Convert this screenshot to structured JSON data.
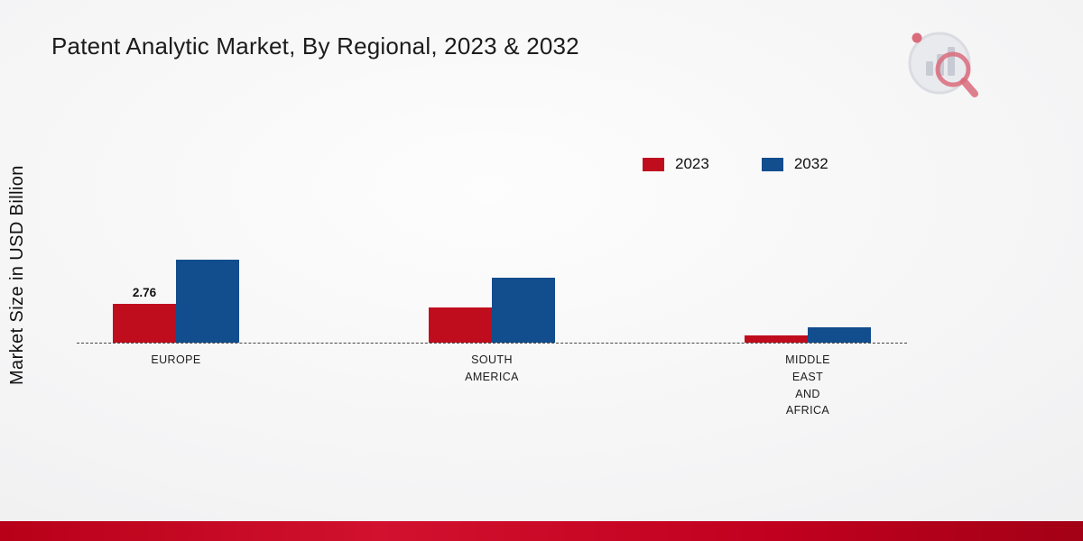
{
  "page": {
    "title": "Patent Analytic Market, By Regional, 2023 & 2032",
    "ylabel": "Market Size in USD Billion"
  },
  "legend": {
    "items": [
      {
        "label": "2023",
        "color": "#c00d1d"
      },
      {
        "label": "2032",
        "color": "#124d8d"
      }
    ]
  },
  "chart_data": {
    "type": "bar",
    "title": "Patent Analytic Market, By Regional, 2023 & 2032",
    "xlabel": "",
    "ylabel": "Market Size in USD Billion",
    "categories": [
      "EUROPE",
      "SOUTH AMERICA",
      "MIDDLE EAST AND AFRICA"
    ],
    "category_labels": [
      "EUROPE",
      "SOUTH\nAMERICA",
      "MIDDLE\nEAST\nAND\nAFRICA"
    ],
    "series": [
      {
        "name": "2023",
        "color": "#c00d1d",
        "values": [
          2.76,
          2.5,
          0.5
        ]
      },
      {
        "name": "2032",
        "color": "#124d8d",
        "values": [
          5.9,
          4.6,
          1.1
        ]
      }
    ],
    "annotations": [
      {
        "series": "2023",
        "category_index": 0,
        "text": "2.76"
      }
    ],
    "ylim": [
      0,
      6.5
    ],
    "grid": false,
    "baseline_style": "dashed",
    "legend_position": "top-right"
  },
  "colors": {
    "accent_red": "#c00d1d",
    "accent_blue": "#124d8d",
    "footer_bar": "#c2001f"
  }
}
